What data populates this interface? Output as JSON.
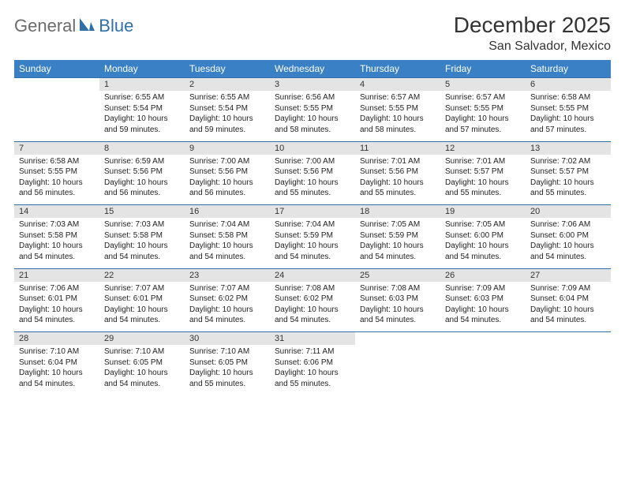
{
  "brand": {
    "part1": "General",
    "part2": "Blue"
  },
  "title": "December 2025",
  "location": "San Salvador, Mexico",
  "colors": {
    "header_bg": "#3a80c4",
    "rule": "#2f6fa8",
    "daynum_bg": "#e4e4e4",
    "logo_gray": "#6b6b6b",
    "logo_blue": "#2f6fa8"
  },
  "weekday_labels": [
    "Sunday",
    "Monday",
    "Tuesday",
    "Wednesday",
    "Thursday",
    "Friday",
    "Saturday"
  ],
  "layout": {
    "columns": 7,
    "weeks": 5,
    "first_weekday_index": 1
  },
  "weeks": [
    [
      null,
      {
        "n": "1",
        "sr": "6:55 AM",
        "ss": "5:54 PM",
        "dl": "10 hours and 59 minutes."
      },
      {
        "n": "2",
        "sr": "6:55 AM",
        "ss": "5:54 PM",
        "dl": "10 hours and 59 minutes."
      },
      {
        "n": "3",
        "sr": "6:56 AM",
        "ss": "5:55 PM",
        "dl": "10 hours and 58 minutes."
      },
      {
        "n": "4",
        "sr": "6:57 AM",
        "ss": "5:55 PM",
        "dl": "10 hours and 58 minutes."
      },
      {
        "n": "5",
        "sr": "6:57 AM",
        "ss": "5:55 PM",
        "dl": "10 hours and 57 minutes."
      },
      {
        "n": "6",
        "sr": "6:58 AM",
        "ss": "5:55 PM",
        "dl": "10 hours and 57 minutes."
      }
    ],
    [
      {
        "n": "7",
        "sr": "6:58 AM",
        "ss": "5:55 PM",
        "dl": "10 hours and 56 minutes."
      },
      {
        "n": "8",
        "sr": "6:59 AM",
        "ss": "5:56 PM",
        "dl": "10 hours and 56 minutes."
      },
      {
        "n": "9",
        "sr": "7:00 AM",
        "ss": "5:56 PM",
        "dl": "10 hours and 56 minutes."
      },
      {
        "n": "10",
        "sr": "7:00 AM",
        "ss": "5:56 PM",
        "dl": "10 hours and 55 minutes."
      },
      {
        "n": "11",
        "sr": "7:01 AM",
        "ss": "5:56 PM",
        "dl": "10 hours and 55 minutes."
      },
      {
        "n": "12",
        "sr": "7:01 AM",
        "ss": "5:57 PM",
        "dl": "10 hours and 55 minutes."
      },
      {
        "n": "13",
        "sr": "7:02 AM",
        "ss": "5:57 PM",
        "dl": "10 hours and 55 minutes."
      }
    ],
    [
      {
        "n": "14",
        "sr": "7:03 AM",
        "ss": "5:58 PM",
        "dl": "10 hours and 54 minutes."
      },
      {
        "n": "15",
        "sr": "7:03 AM",
        "ss": "5:58 PM",
        "dl": "10 hours and 54 minutes."
      },
      {
        "n": "16",
        "sr": "7:04 AM",
        "ss": "5:58 PM",
        "dl": "10 hours and 54 minutes."
      },
      {
        "n": "17",
        "sr": "7:04 AM",
        "ss": "5:59 PM",
        "dl": "10 hours and 54 minutes."
      },
      {
        "n": "18",
        "sr": "7:05 AM",
        "ss": "5:59 PM",
        "dl": "10 hours and 54 minutes."
      },
      {
        "n": "19",
        "sr": "7:05 AM",
        "ss": "6:00 PM",
        "dl": "10 hours and 54 minutes."
      },
      {
        "n": "20",
        "sr": "7:06 AM",
        "ss": "6:00 PM",
        "dl": "10 hours and 54 minutes."
      }
    ],
    [
      {
        "n": "21",
        "sr": "7:06 AM",
        "ss": "6:01 PM",
        "dl": "10 hours and 54 minutes."
      },
      {
        "n": "22",
        "sr": "7:07 AM",
        "ss": "6:01 PM",
        "dl": "10 hours and 54 minutes."
      },
      {
        "n": "23",
        "sr": "7:07 AM",
        "ss": "6:02 PM",
        "dl": "10 hours and 54 minutes."
      },
      {
        "n": "24",
        "sr": "7:08 AM",
        "ss": "6:02 PM",
        "dl": "10 hours and 54 minutes."
      },
      {
        "n": "25",
        "sr": "7:08 AM",
        "ss": "6:03 PM",
        "dl": "10 hours and 54 minutes."
      },
      {
        "n": "26",
        "sr": "7:09 AM",
        "ss": "6:03 PM",
        "dl": "10 hours and 54 minutes."
      },
      {
        "n": "27",
        "sr": "7:09 AM",
        "ss": "6:04 PM",
        "dl": "10 hours and 54 minutes."
      }
    ],
    [
      {
        "n": "28",
        "sr": "7:10 AM",
        "ss": "6:04 PM",
        "dl": "10 hours and 54 minutes."
      },
      {
        "n": "29",
        "sr": "7:10 AM",
        "ss": "6:05 PM",
        "dl": "10 hours and 54 minutes."
      },
      {
        "n": "30",
        "sr": "7:10 AM",
        "ss": "6:05 PM",
        "dl": "10 hours and 55 minutes."
      },
      {
        "n": "31",
        "sr": "7:11 AM",
        "ss": "6:06 PM",
        "dl": "10 hours and 55 minutes."
      },
      null,
      null,
      null
    ]
  ],
  "field_labels": {
    "sunrise": "Sunrise:",
    "sunset": "Sunset:",
    "daylight": "Daylight:"
  }
}
